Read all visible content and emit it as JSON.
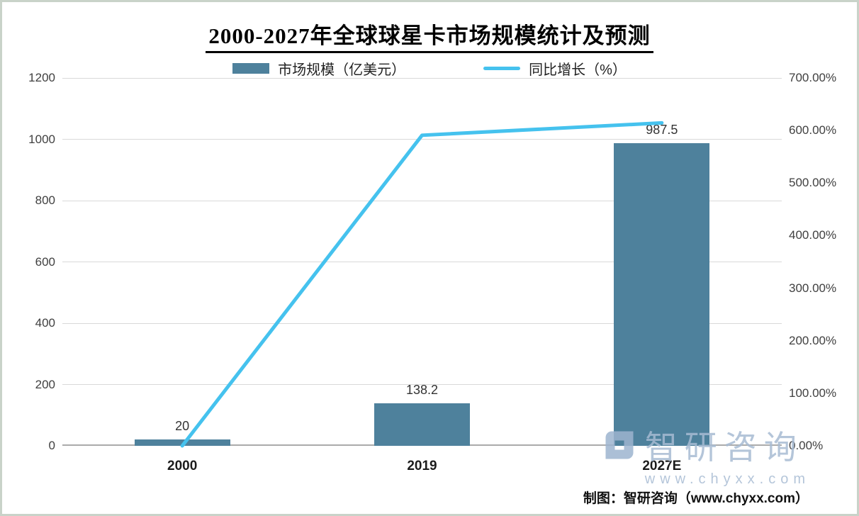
{
  "title": "2000-2027年全球球星卡市场规模统计及预测",
  "legend": {
    "bar": {
      "label": "市场规模（亿美元）"
    },
    "line": {
      "label": "同比增长（%）"
    }
  },
  "chart_data": {
    "type": "bar+line",
    "categories": [
      "2000",
      "2019",
      "2027E"
    ],
    "series": [
      {
        "name": "市场规模（亿美元）",
        "type": "bar",
        "axis": "left",
        "values": [
          20,
          138.2,
          987.5
        ],
        "labels": [
          "20",
          "138.2",
          "987.5"
        ],
        "color": "#4e819c"
      },
      {
        "name": "同比增长（%）",
        "type": "line",
        "axis": "right",
        "values": [
          0,
          591,
          614.5
        ],
        "color": "#45c2ee"
      }
    ],
    "left_axis": {
      "min": 0,
      "max": 1200,
      "step": 200,
      "ticks": [
        "0",
        "200",
        "400",
        "600",
        "800",
        "1000",
        "1200"
      ]
    },
    "right_axis": {
      "min": 0,
      "max": 700,
      "step": 100,
      "ticks": [
        "0.00%",
        "100.00%",
        "200.00%",
        "300.00%",
        "400.00%",
        "500.00%",
        "600.00%",
        "700.00%"
      ]
    },
    "grid": true,
    "legend_position": "top"
  },
  "watermark": {
    "brand": "智研咨询",
    "url": "www.chyxx.com"
  },
  "caption": "制图：智研咨询（www.chyxx.com）",
  "colors": {
    "bar": "#4e819c",
    "line": "#45c2ee",
    "grid": "#d9d9d9",
    "axis": "#ababab",
    "frame_border": "#c9d3c9",
    "watermark": "#a7bbd3"
  }
}
